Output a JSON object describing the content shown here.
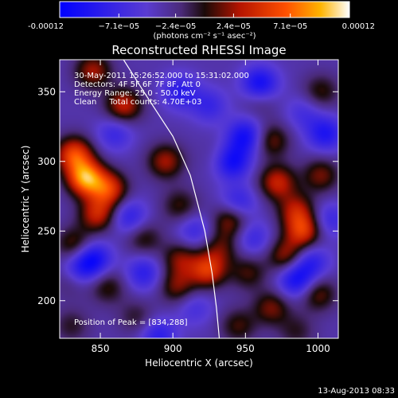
{
  "chart_data": {
    "type": "heatmap",
    "title": "Reconstructed RHESSI Image",
    "xlabel": "Heliocentric X (arcsec)",
    "ylabel": "Heliocentric Y (arcsec)",
    "xlim": [
      822,
      1014
    ],
    "ylim": [
      173,
      373
    ],
    "x_ticks": [
      {
        "value": 850,
        "label": "850"
      },
      {
        "value": 900,
        "label": "900"
      },
      {
        "value": 950,
        "label": "950"
      },
      {
        "value": 1000,
        "label": "1000"
      }
    ],
    "y_ticks": [
      {
        "value": 200,
        "label": "200"
      },
      {
        "value": 250,
        "label": "250"
      },
      {
        "value": 300,
        "label": "300"
      },
      {
        "value": 350,
        "label": "350"
      }
    ],
    "colorbar": {
      "min": -0.00012,
      "max": 0.00012,
      "ticks": [
        {
          "value": -0.00012,
          "label": "-0.00012"
        },
        {
          "value": -7.1e-05,
          "label": "−7.1e−05"
        },
        {
          "value": -2.4e-05,
          "label": "−2.4e−05"
        },
        {
          "value": 2.4e-05,
          "label": "2.4e−05"
        },
        {
          "value": 7.1e-05,
          "label": "7.1e−05"
        },
        {
          "value": 0.00012,
          "label": "0.00012"
        }
      ],
      "unit_label": "(photons cm⁻² s⁻¹ asec⁻²)"
    },
    "annotations": {
      "time_range": "30-May-2011 15:26:52.000 to 15:31:02.000",
      "detectors": "Detectors: 4F 5F 6F 7F 8F, Att 0",
      "energy": "Energy Range: 25.0 - 50.0 keV",
      "method": "Clean     Total counts: 4.70E+03",
      "peak": "Position of Peak = [834,288]"
    },
    "limb_line": [
      [
        866,
        373
      ],
      [
        880,
        350
      ],
      [
        900,
        318
      ],
      [
        912,
        290
      ],
      [
        922,
        250
      ],
      [
        927,
        220
      ],
      [
        930,
        195
      ],
      [
        932,
        173
      ]
    ],
    "sources": [
      {
        "x": 840,
        "y": 288,
        "value": 0.00012
      },
      {
        "x": 832,
        "y": 305,
        "value": 9e-05
      },
      {
        "x": 856,
        "y": 280,
        "value": 8e-05
      },
      {
        "x": 848,
        "y": 262,
        "value": 7e-05
      },
      {
        "x": 832,
        "y": 240,
        "value": 5e-05
      },
      {
        "x": 845,
        "y": 365,
        "value": 6e-05
      },
      {
        "x": 866,
        "y": 340,
        "value": 7e-05
      },
      {
        "x": 895,
        "y": 300,
        "value": 6e-05
      },
      {
        "x": 880,
        "y": 245,
        "value": 4e-05
      },
      {
        "x": 905,
        "y": 268,
        "value": 4e-05
      },
      {
        "x": 905,
        "y": 230,
        "value": 5e-05
      },
      {
        "x": 924,
        "y": 222,
        "value": 8e-05
      },
      {
        "x": 903,
        "y": 210,
        "value": 5e-05
      },
      {
        "x": 940,
        "y": 258,
        "value": 6e-05
      },
      {
        "x": 933,
        "y": 238,
        "value": 4e-05
      },
      {
        "x": 935,
        "y": 302,
        "value": 3e-05
      },
      {
        "x": 968,
        "y": 315,
        "value": 5e-05
      },
      {
        "x": 972,
        "y": 285,
        "value": 7e-05
      },
      {
        "x": 985,
        "y": 265,
        "value": 6e-05
      },
      {
        "x": 990,
        "y": 250,
        "value": 8e-05
      },
      {
        "x": 978,
        "y": 232,
        "value": 6e-05
      },
      {
        "x": 1002,
        "y": 290,
        "value": 5e-05
      },
      {
        "x": 1002,
        "y": 350,
        "value": 4e-05
      },
      {
        "x": 952,
        "y": 220,
        "value": 4e-05
      },
      {
        "x": 968,
        "y": 195,
        "value": 5e-05
      },
      {
        "x": 1000,
        "y": 205,
        "value": 5e-05
      },
      {
        "x": 985,
        "y": 178,
        "value": 3e-05
      },
      {
        "x": 855,
        "y": 210,
        "value": 4e-05
      },
      {
        "x": 875,
        "y": 188,
        "value": 3e-05
      },
      {
        "x": 830,
        "y": 182,
        "value": 3e-05
      },
      {
        "x": 945,
        "y": 182,
        "value": 4e-05
      },
      {
        "x": 960,
        "y": 345,
        "value": 3e-05
      },
      {
        "x": 830,
        "y": 215,
        "value": 3e-05
      },
      {
        "x": 940,
        "y": 300,
        "value": -9e-05
      },
      {
        "x": 950,
        "y": 318,
        "value": -7e-05
      },
      {
        "x": 960,
        "y": 355,
        "value": -8e-05
      },
      {
        "x": 925,
        "y": 340,
        "value": -4e-05
      },
      {
        "x": 905,
        "y": 350,
        "value": -5e-05
      },
      {
        "x": 1005,
        "y": 320,
        "value": -6e-05
      },
      {
        "x": 845,
        "y": 230,
        "value": -7e-05
      },
      {
        "x": 835,
        "y": 222,
        "value": -5e-05
      },
      {
        "x": 870,
        "y": 260,
        "value": -5e-05
      },
      {
        "x": 880,
        "y": 220,
        "value": -5e-05
      },
      {
        "x": 915,
        "y": 250,
        "value": -4e-05
      },
      {
        "x": 945,
        "y": 270,
        "value": -5e-05
      },
      {
        "x": 985,
        "y": 215,
        "value": -7e-05
      },
      {
        "x": 955,
        "y": 245,
        "value": -4e-05
      },
      {
        "x": 995,
        "y": 228,
        "value": -5e-05
      },
      {
        "x": 890,
        "y": 175,
        "value": -5e-05
      },
      {
        "x": 915,
        "y": 195,
        "value": -3e-05
      },
      {
        "x": 1008,
        "y": 258,
        "value": -4e-05
      },
      {
        "x": 860,
        "y": 320,
        "value": -4e-05
      },
      {
        "x": 990,
        "y": 335,
        "value": -3e-05
      }
    ]
  },
  "footer": {
    "timestamp": "13-Aug-2013 08:33"
  }
}
